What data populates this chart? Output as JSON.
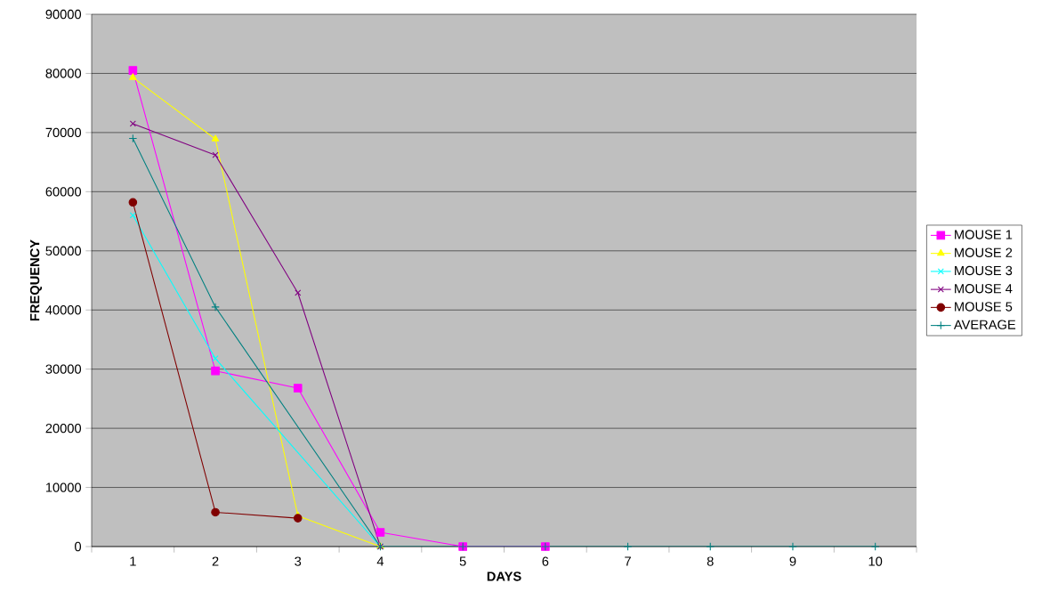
{
  "chart_data": {
    "type": "line",
    "xlabel": "DAYS",
    "ylabel": "FREQUENCY",
    "categories": [
      "1",
      "2",
      "3",
      "4",
      "5",
      "6",
      "7",
      "8",
      "9",
      "10"
    ],
    "ylim": [
      0,
      90000
    ],
    "yticks": [
      0,
      10000,
      20000,
      30000,
      40000,
      50000,
      60000,
      70000,
      80000,
      90000
    ],
    "grid": "y",
    "legend": "right",
    "line_style": "solid",
    "series": [
      {
        "name": "MOUSE 1",
        "color": "#ff00ff",
        "marker": "square",
        "values": [
          80500,
          29700,
          26800,
          2400,
          0,
          0,
          null,
          null,
          null,
          null
        ]
      },
      {
        "name": "MOUSE 2",
        "color": "#ffff00",
        "marker": "triangle",
        "values": [
          79300,
          68900,
          5200,
          0,
          null,
          null,
          null,
          null,
          null,
          null
        ]
      },
      {
        "name": "MOUSE 3",
        "color": "#00ffff",
        "marker": "cross",
        "values": [
          56000,
          31800,
          null,
          0,
          null,
          null,
          null,
          null,
          null,
          null
        ]
      },
      {
        "name": "MOUSE 4",
        "color": "#800080",
        "marker": "cross",
        "values": [
          71500,
          66200,
          42900,
          0,
          null,
          null,
          null,
          null,
          null,
          null
        ]
      },
      {
        "name": "MOUSE 5",
        "color": "#800000",
        "marker": "circle",
        "values": [
          58200,
          5800,
          4800,
          null,
          null,
          null,
          null,
          null,
          null,
          null
        ]
      },
      {
        "name": "AVERAGE",
        "color": "#008080",
        "marker": "plus",
        "values": [
          69000,
          40500,
          null,
          0,
          0,
          0,
          0,
          0,
          0,
          0
        ]
      }
    ]
  }
}
